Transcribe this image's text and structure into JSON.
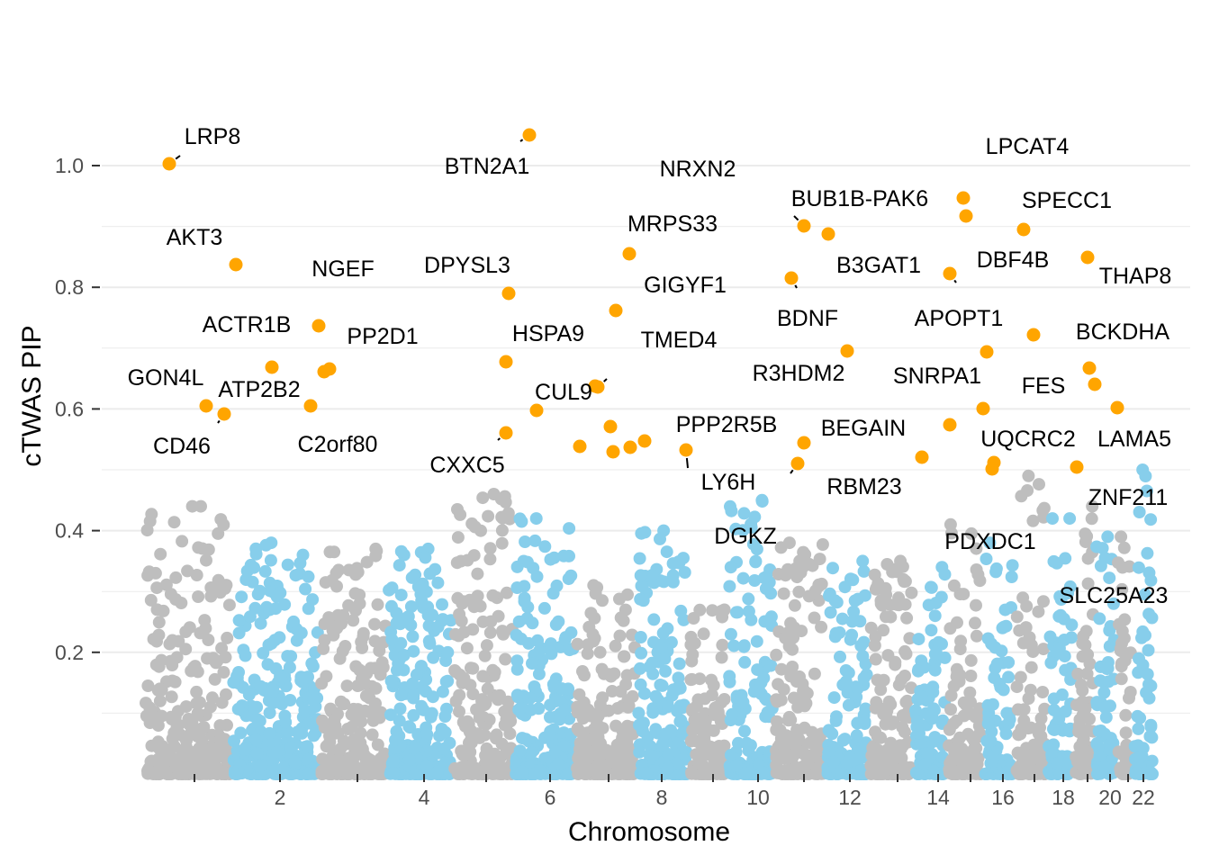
{
  "chart_data": {
    "type": "scatter",
    "xlabel": "Chromosome",
    "ylabel": "cTWAS PIP",
    "ylim": [
      0,
      1.1
    ],
    "y_ticks": [
      "0.2",
      "0.4",
      "0.6",
      "0.8",
      "1.0"
    ],
    "y_tick_values": [
      0.2,
      0.4,
      0.6,
      0.8,
      1.0
    ],
    "x_ticks": [
      {
        "chrom": 1,
        "label": ""
      },
      {
        "chrom": 2,
        "label": "2"
      },
      {
        "chrom": 3,
        "label": ""
      },
      {
        "chrom": 4,
        "label": "4"
      },
      {
        "chrom": 5,
        "label": ""
      },
      {
        "chrom": 6,
        "label": "6"
      },
      {
        "chrom": 7,
        "label": ""
      },
      {
        "chrom": 8,
        "label": "8"
      },
      {
        "chrom": 9,
        "label": ""
      },
      {
        "chrom": 10,
        "label": "10"
      },
      {
        "chrom": 11,
        "label": ""
      },
      {
        "chrom": 12,
        "label": "12"
      },
      {
        "chrom": 13,
        "label": ""
      },
      {
        "chrom": 14,
        "label": "14"
      },
      {
        "chrom": 15,
        "label": ""
      },
      {
        "chrom": 16,
        "label": "16"
      },
      {
        "chrom": 17,
        "label": ""
      },
      {
        "chrom": 18,
        "label": "18"
      },
      {
        "chrom": 19,
        "label": ""
      },
      {
        "chrom": 20,
        "label": "20"
      },
      {
        "chrom": 21,
        "label": ""
      },
      {
        "chrom": 22,
        "label": "22"
      }
    ],
    "grid": "horizontal",
    "legend": "none",
    "colors": {
      "odd_chromosomes": "#bebebe",
      "even_chromosomes": "#87ceeb",
      "highlighted_genes": "#ffa500",
      "grid": "#ebebeb",
      "axis_text": "#4d4d4d"
    },
    "highlighted_genes": [
      {
        "gene": "LRP8",
        "chrom": 1,
        "pip": 1.0
      },
      {
        "gene": "AKT3",
        "chrom": 1,
        "pip": 0.835
      },
      {
        "gene": "GON4L",
        "chrom": 1,
        "pip": 0.603
      },
      {
        "gene": "CD46",
        "chrom": 1,
        "pip": 0.59
      },
      {
        "gene": "ACTR1B",
        "chrom": 2,
        "pip": 0.666
      },
      {
        "gene": "C2orf80",
        "chrom": 2,
        "pip": 0.603
      },
      {
        "gene": "NGEF",
        "chrom": 2,
        "pip": 0.735
      },
      {
        "gene": "PP2D1",
        "chrom": 3,
        "pip": 0.665
      },
      {
        "gene": "ATP2B2",
        "chrom": 3,
        "pip": 0.66
      },
      {
        "gene": "BTN2A1",
        "chrom": 6,
        "pip": 1.05
      },
      {
        "gene": "DPYSL3",
        "chrom": 5,
        "pip": 0.79
      },
      {
        "gene": "HSPA9",
        "chrom": 5,
        "pip": 0.678
      },
      {
        "gene": "CXXC5",
        "chrom": 5,
        "pip": 0.56
      },
      {
        "gene": "",
        "chrom": 6,
        "pip": 0.598
      },
      {
        "gene": "",
        "chrom": 6,
        "pip": 0.537
      },
      {
        "gene": "CUL9",
        "chrom": 6,
        "pip": 0.637
      },
      {
        "gene": "MRPS33",
        "chrom": 7,
        "pip": 0.855
      },
      {
        "gene": "GIGYF1",
        "chrom": 7,
        "pip": 0.76
      },
      {
        "gene": "TMED4",
        "chrom": 7,
        "pip": 0.637
      },
      {
        "gene": "",
        "chrom": 7,
        "pip": 0.57
      },
      {
        "gene": "",
        "chrom": 7,
        "pip": 0.528
      },
      {
        "gene": "",
        "chrom": 7,
        "pip": 0.537
      },
      {
        "gene": "",
        "chrom": 7,
        "pip": 0.546
      },
      {
        "gene": "LY6H",
        "chrom": 8,
        "pip": 0.53
      },
      {
        "gene": "NRXN2",
        "chrom": 11,
        "pip": 0.9
      },
      {
        "gene": "B3GAT1",
        "chrom": 11,
        "pip": 0.887
      },
      {
        "gene": "BDNF",
        "chrom": 11,
        "pip": 0.815
      },
      {
        "gene": "PPP2R5B",
        "chrom": 11,
        "pip": 0.544
      },
      {
        "gene": "DGKZ",
        "chrom": 11,
        "pip": 0.51
      },
      {
        "gene": "R3HDM2",
        "chrom": 12,
        "pip": 0.694
      },
      {
        "gene": "BUB1B-PAK6",
        "chrom": 15,
        "pip": 0.915
      },
      {
        "gene": "LPCAT4",
        "chrom": 15,
        "pip": 0.945
      },
      {
        "gene": "APOPT1",
        "chrom": 14,
        "pip": 0.822
      },
      {
        "gene": "BEGAIN",
        "chrom": 14,
        "pip": 0.573
      },
      {
        "gene": "RBM23",
        "chrom": 14,
        "pip": 0.52
      },
      {
        "gene": "SNRPA1",
        "chrom": 15,
        "pip": 0.692
      },
      {
        "gene": "FES",
        "chrom": 15,
        "pip": 0.6
      },
      {
        "gene": "SPECC1",
        "chrom": 17,
        "pip": 0.893
      },
      {
        "gene": "DBF4B",
        "chrom": 17,
        "pip": 0.72
      },
      {
        "gene": "UQCRC2",
        "chrom": 16,
        "pip": 0.512
      },
      {
        "gene": "PDXDC1",
        "chrom": 16,
        "pip": 0.5
      },
      {
        "gene": "THAP8",
        "chrom": 19,
        "pip": 0.848
      },
      {
        "gene": "BCKDHA",
        "chrom": 19,
        "pip": 0.666
      },
      {
        "gene": "ZNF211",
        "chrom": 19,
        "pip": 0.64
      },
      {
        "gene": "LAMA5",
        "chrom": 20,
        "pip": 0.6
      },
      {
        "gene": "SLC25A23",
        "chrom": 19,
        "pip": 0.5
      }
    ],
    "background_points_note": "",
    "chrom_max_pip": [
      0.44,
      0.38,
      0.37,
      0.37,
      0.46,
      0.42,
      0.31,
      0.4,
      0.27,
      0.45,
      0.38,
      0.35,
      0.35,
      0.34,
      0.41,
      0.38,
      0.49,
      0.42,
      0.44,
      0.39,
      0.39,
      0.5
    ]
  }
}
